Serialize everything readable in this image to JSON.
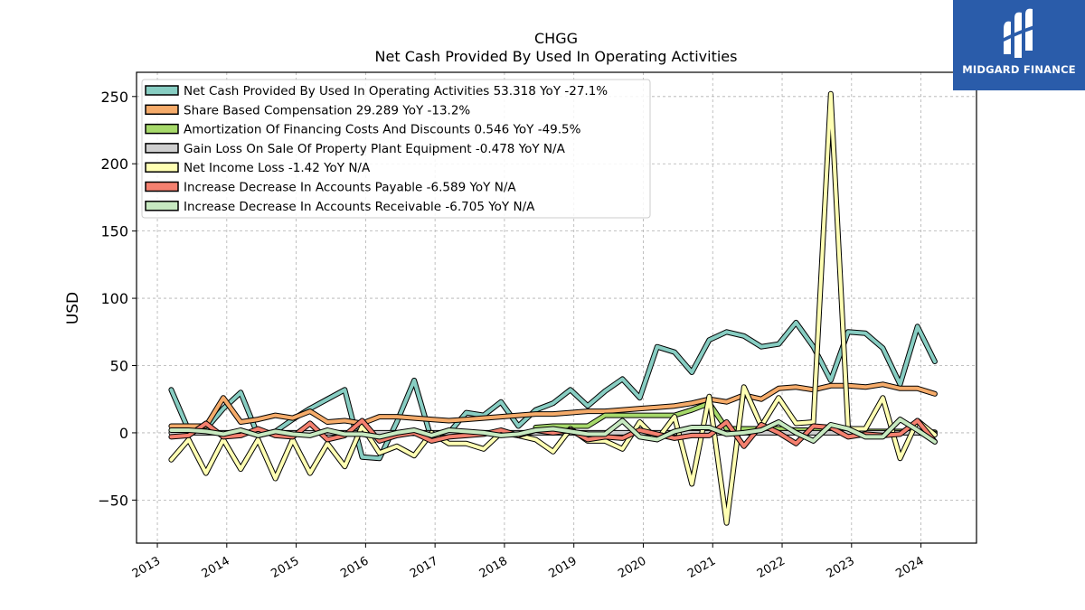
{
  "chart_data": {
    "type": "line",
    "title": "CHGG",
    "subtitle": "Net Cash Provided By Used In Operating Activities",
    "ylabel": "USD",
    "xlabel": "",
    "ylim": [
      -82,
      268
    ],
    "xlim": [
      2012.7,
      2024.8
    ],
    "yticks": [
      -50,
      0,
      50,
      100,
      150,
      200,
      250
    ],
    "xticks": [
      "2013",
      "2014",
      "2015",
      "2016",
      "2017",
      "2018",
      "2019",
      "2020",
      "2021",
      "2022",
      "2023",
      "2024"
    ],
    "grid": true,
    "legend_position": "top-left",
    "series": [
      {
        "name": "Net Cash Provided By Used In Operating Activities  53.318 YoY -27.1%",
        "color": "#87cdc2",
        "x": [
          2013.2,
          2013.45,
          2013.7,
          2013.95,
          2014.2,
          2014.45,
          2014.7,
          2014.95,
          2015.2,
          2015.45,
          2015.7,
          2015.95,
          2016.2,
          2016.45,
          2016.7,
          2016.95,
          2017.2,
          2017.45,
          2017.7,
          2017.95,
          2018.2,
          2018.45,
          2018.7,
          2018.95,
          2019.2,
          2019.45,
          2019.7,
          2019.95,
          2020.2,
          2020.45,
          2020.7,
          2020.95,
          2021.2,
          2021.45,
          2021.7,
          2021.95,
          2022.2,
          2022.45,
          2022.7,
          2022.95,
          2023.2,
          2023.45,
          2023.7,
          2023.95,
          2024.2
        ],
        "values": [
          32,
          2,
          3,
          18,
          30,
          -2,
          1,
          10,
          18,
          25,
          32,
          -18,
          -19,
          8,
          39,
          -5,
          0,
          15,
          13,
          23,
          5,
          17,
          22,
          32,
          20,
          31,
          40,
          26,
          64,
          60,
          45,
          69,
          75,
          72,
          64,
          66,
          82,
          64,
          39,
          75,
          74,
          63,
          36,
          79,
          53
        ]
      },
      {
        "name": "Share Based Compensation  29.289 YoY -13.2%",
        "color": "#f5ab6a",
        "x": [
          2013.2,
          2013.45,
          2013.7,
          2013.95,
          2014.2,
          2014.45,
          2014.7,
          2014.95,
          2015.2,
          2015.45,
          2015.7,
          2015.95,
          2016.2,
          2016.45,
          2016.7,
          2016.95,
          2017.2,
          2017.45,
          2017.7,
          2017.95,
          2018.2,
          2018.45,
          2018.7,
          2018.95,
          2019.2,
          2019.45,
          2019.7,
          2019.95,
          2020.2,
          2020.45,
          2020.7,
          2020.95,
          2021.2,
          2021.45,
          2021.7,
          2021.95,
          2022.2,
          2022.45,
          2022.7,
          2022.95,
          2023.2,
          2023.45,
          2023.7,
          2023.95,
          2024.2
        ],
        "values": [
          5,
          5,
          5,
          26,
          8,
          10,
          13,
          11,
          16,
          8,
          9,
          7,
          12,
          12,
          11,
          10,
          9,
          10,
          11,
          12,
          13,
          14,
          14,
          15,
          16,
          16,
          17,
          18,
          19,
          20,
          22,
          25,
          23,
          28,
          25,
          33,
          34,
          32,
          35,
          35,
          34,
          36,
          33,
          33,
          29
        ]
      },
      {
        "name": "Amortization Of Financing Costs And Discounts  0.546 YoY -49.5%",
        "color": "#a6d96a",
        "x": [
          2018.45,
          2018.7,
          2018.95,
          2019.2,
          2019.45,
          2019.7,
          2019.95,
          2020.2,
          2020.45,
          2020.7,
          2020.95,
          2021.2,
          2021.45,
          2021.7,
          2021.95,
          2022.2,
          2022.45,
          2022.7,
          2022.95,
          2023.2,
          2023.45,
          2023.7,
          2023.95,
          2024.2
        ],
        "values": [
          4,
          5,
          5,
          5,
          13,
          13,
          13,
          13,
          13,
          17,
          22,
          3,
          3,
          3,
          3,
          2,
          2,
          2,
          1,
          1,
          1,
          1,
          1,
          0.5
        ]
      },
      {
        "name": "Gain Loss On Sale Of Property Plant Equipment  -0.478 YoY N/A",
        "color": "#cfcfcf",
        "x": [
          2013.2,
          2013.45,
          2013.7,
          2013.95,
          2014.2,
          2014.45,
          2014.7,
          2014.95,
          2015.2,
          2015.45,
          2015.7,
          2015.95,
          2016.2,
          2016.45,
          2016.7,
          2016.95,
          2017.2,
          2017.45,
          2017.7,
          2017.95,
          2018.2,
          2018.45,
          2018.7,
          2018.95,
          2019.2,
          2019.45,
          2019.7,
          2019.95,
          2020.2,
          2020.45,
          2020.7,
          2020.95,
          2021.2,
          2021.45,
          2021.7,
          2021.95,
          2022.2,
          2022.45,
          2022.7,
          2022.95,
          2023.2,
          2023.45,
          2023.7,
          2023.95,
          2024.2
        ],
        "values": [
          0,
          0,
          0,
          0,
          0,
          0,
          0,
          0,
          0,
          0,
          0,
          0,
          0,
          0,
          0,
          0,
          0,
          0,
          0,
          0,
          0,
          0,
          0,
          0,
          0,
          0,
          0,
          0,
          0,
          0,
          0,
          0,
          0,
          0,
          0,
          0,
          0,
          0,
          0,
          0,
          0,
          0,
          0,
          0,
          -0.478
        ]
      },
      {
        "name": "Net Income Loss  -1.42 YoY N/A",
        "color": "#ffffb3",
        "x": [
          2013.2,
          2013.45,
          2013.7,
          2013.95,
          2014.2,
          2014.45,
          2014.7,
          2014.95,
          2015.2,
          2015.45,
          2015.7,
          2015.95,
          2016.2,
          2016.45,
          2016.7,
          2016.95,
          2017.2,
          2017.45,
          2017.7,
          2017.95,
          2018.2,
          2018.45,
          2018.7,
          2018.95,
          2019.2,
          2019.45,
          2019.7,
          2019.95,
          2020.2,
          2020.45,
          2020.7,
          2020.95,
          2021.2,
          2021.45,
          2021.7,
          2021.95,
          2022.2,
          2022.45,
          2022.7,
          2022.95,
          2023.2,
          2023.45,
          2023.7,
          2023.95,
          2024.2
        ],
        "values": [
          -20,
          -5,
          -30,
          -5,
          -27,
          -5,
          -34,
          -5,
          -30,
          -8,
          -25,
          5,
          -15,
          -10,
          -17,
          0,
          -8,
          -8,
          -12,
          0,
          -2,
          -5,
          -14,
          3,
          -6,
          -6,
          -12,
          8,
          -5,
          12,
          -38,
          27,
          -67,
          34,
          5,
          26,
          7,
          8,
          252,
          3,
          3,
          26,
          -19,
          9,
          -1.42
        ]
      },
      {
        "name": "Increase Decrease In Accounts Payable  -6.589 YoY N/A",
        "color": "#f4806f",
        "x": [
          2013.2,
          2013.45,
          2013.7,
          2013.95,
          2014.2,
          2014.45,
          2014.7,
          2014.95,
          2015.2,
          2015.45,
          2015.7,
          2015.95,
          2016.2,
          2016.45,
          2016.7,
          2016.95,
          2017.2,
          2017.45,
          2017.7,
          2017.95,
          2018.2,
          2018.45,
          2018.7,
          2018.95,
          2019.2,
          2019.45,
          2019.7,
          2019.95,
          2020.2,
          2020.45,
          2020.7,
          2020.95,
          2021.2,
          2021.45,
          2021.7,
          2021.95,
          2022.2,
          2022.45,
          2022.7,
          2022.95,
          2023.2,
          2023.45,
          2023.7,
          2023.95,
          2024.2
        ],
        "values": [
          -3,
          -2,
          7,
          -3,
          -2,
          3,
          -2,
          -3,
          7,
          -5,
          -2,
          9,
          -6,
          -2,
          0,
          -6,
          -3,
          -2,
          -1,
          2,
          -2,
          2,
          0,
          2,
          -5,
          -3,
          -4,
          2,
          -1,
          -4,
          -2,
          -2,
          8,
          -10,
          6,
          0,
          -8,
          5,
          4,
          -3,
          -1,
          -2,
          -1,
          9,
          -6.589
        ]
      },
      {
        "name": "Increase Decrease In Accounts Receivable  -6.705 YoY N/A",
        "color": "#c7e9c0",
        "x": [
          2013.2,
          2013.45,
          2013.7,
          2013.95,
          2014.2,
          2014.45,
          2014.7,
          2014.95,
          2015.2,
          2015.45,
          2015.7,
          2015.95,
          2016.2,
          2016.45,
          2016.7,
          2016.95,
          2017.2,
          2017.45,
          2017.7,
          2017.95,
          2018.2,
          2018.45,
          2018.7,
          2018.95,
          2019.2,
          2019.45,
          2019.7,
          2019.95,
          2020.2,
          2020.45,
          2020.7,
          2020.95,
          2021.2,
          2021.45,
          2021.7,
          2021.95,
          2022.2,
          2022.45,
          2022.7,
          2022.95,
          2023.2,
          2023.45,
          2023.7,
          2023.95,
          2024.2
        ],
        "values": [
          2,
          2,
          1,
          -1,
          2,
          -2,
          1,
          -1,
          -2,
          2,
          -1,
          -1,
          -3,
          0,
          2,
          -2,
          2,
          1,
          0,
          -2,
          -1,
          2,
          3,
          1,
          -1,
          -1,
          9,
          -3,
          -5,
          1,
          4,
          4,
          -1,
          0,
          2,
          8,
          0,
          -6,
          6,
          3,
          -3,
          -3,
          10,
          2,
          -6.705
        ]
      }
    ]
  },
  "brand": {
    "name": "MIDGARD FINANCE",
    "logo_color": "#2a5caa"
  }
}
